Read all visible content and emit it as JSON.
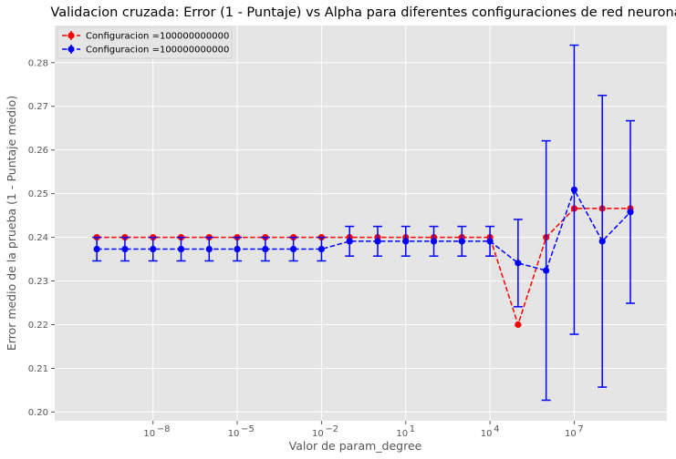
{
  "chart_data": {
    "type": "line",
    "title": "Validacion cruzada: Error (1 - Puntaje) vs Alpha para diferentes configuraciones de red neuronal",
    "xlabel": "Valor de param_degree",
    "ylabel": "Error medio de la prueba (1 - Puntaje medio)",
    "xscale": "log",
    "xlim_exp": [
      -11.5,
      10.3
    ],
    "ylim": [
      0.198,
      0.2885
    ],
    "grid": true,
    "legend_position": "top-left",
    "x_ticks": [
      {
        "exp": -8,
        "label": "10",
        "sup": "−8"
      },
      {
        "exp": -5,
        "label": "10",
        "sup": "−5"
      },
      {
        "exp": -2,
        "label": "10",
        "sup": "−2"
      },
      {
        "exp": 1,
        "label": "10",
        "sup": "1"
      },
      {
        "exp": 4,
        "label": "10",
        "sup": "4"
      },
      {
        "exp": 7,
        "label": "10",
        "sup": "7"
      }
    ],
    "y_ticks": [
      0.2,
      0.21,
      0.22,
      0.23,
      0.24,
      0.25,
      0.26,
      0.27,
      0.28
    ],
    "x": [
      "1e-10",
      "1e-9",
      "1e-8",
      "1e-7",
      "1e-6",
      "1e-5",
      "1e-4",
      "1e-3",
      "1e-2",
      "1e-1",
      "1",
      "10",
      "100",
      "1000",
      "1e4",
      "1e5",
      "1e6",
      "1e7",
      "1e8",
      "1e9"
    ],
    "series": [
      {
        "name": "Configuracion =100000000000",
        "color": "#ff0000",
        "values": [
          0.24,
          0.24,
          0.24,
          0.24,
          0.24,
          0.24,
          0.24,
          0.24,
          0.24,
          0.24,
          0.24,
          0.24,
          0.24,
          0.24,
          0.24,
          0.22,
          0.24,
          0.2466,
          0.2466,
          0.2466
        ],
        "errors": [
          0,
          0,
          0,
          0,
          0,
          0,
          0,
          0,
          0,
          0,
          0,
          0,
          0,
          0,
          0,
          0,
          0,
          0,
          0,
          0
        ]
      },
      {
        "name": "Configuracion =100000000000",
        "color": "#0000ff",
        "values": [
          0.2373,
          0.2373,
          0.2373,
          0.2373,
          0.2373,
          0.2373,
          0.2373,
          0.2373,
          0.2373,
          0.2391,
          0.2391,
          0.2391,
          0.2391,
          0.2391,
          0.2391,
          0.2341,
          0.2324,
          0.2509,
          0.2391,
          0.2458
        ],
        "errors": [
          0.0027,
          0.0027,
          0.0027,
          0.0027,
          0.0027,
          0.0027,
          0.0027,
          0.0027,
          0.0027,
          0.0034,
          0.0034,
          0.0034,
          0.0034,
          0.0034,
          0.0034,
          0.01,
          0.0297,
          0.0331,
          0.0334,
          0.0209
        ]
      }
    ]
  }
}
